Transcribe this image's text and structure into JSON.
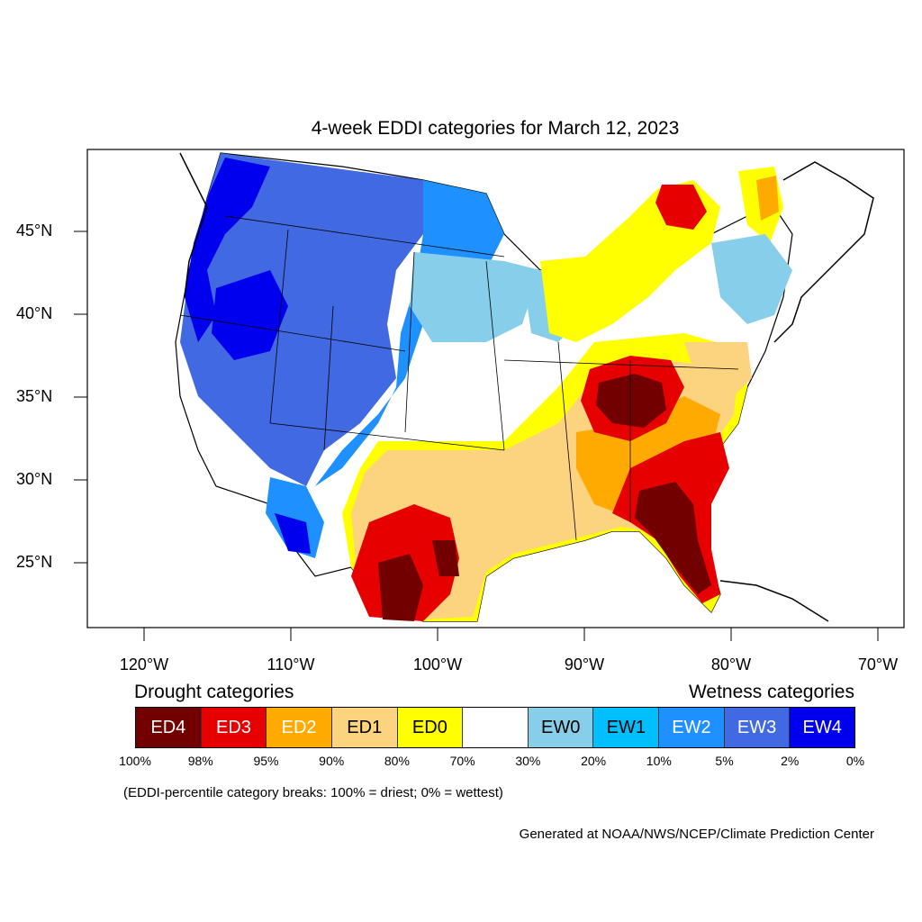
{
  "title": "4-week EDDI categories for March 12, 2023",
  "lat_labels": [
    "45°N",
    "40°N",
    "35°N",
    "30°N",
    "25°N"
  ],
  "lon_labels": [
    "120°W",
    "110°W",
    "100°W",
    "90°W",
    "80°W",
    "70°W"
  ],
  "legend": {
    "drought_heading": "Drought categories",
    "wetness_heading": "Wetness categories",
    "categories": [
      {
        "label": "ED4",
        "color": "#730000",
        "text_color": "#ffffff"
      },
      {
        "label": "ED3",
        "color": "#e60000",
        "text_color": "#ffffff"
      },
      {
        "label": "ED2",
        "color": "#ffaa00",
        "text_color": "#ffffff"
      },
      {
        "label": "ED1",
        "color": "#fcd37f",
        "text_color": "#000000"
      },
      {
        "label": "ED0",
        "color": "#ffff00",
        "text_color": "#000000"
      },
      {
        "label": "",
        "color": "#ffffff",
        "text_color": "#000000"
      },
      {
        "label": "EW0",
        "color": "#87ceeb",
        "text_color": "#000000"
      },
      {
        "label": "EW1",
        "color": "#00bfff",
        "text_color": "#000000"
      },
      {
        "label": "EW2",
        "color": "#1e90ff",
        "text_color": "#ffffff"
      },
      {
        "label": "EW3",
        "color": "#4169e1",
        "text_color": "#ffffff"
      },
      {
        "label": "EW4",
        "color": "#0000ee",
        "text_color": "#ffffff"
      }
    ],
    "percent_breaks": [
      "100%",
      "98%",
      "95%",
      "90%",
      "80%",
      "70%",
      "30%",
      "20%",
      "10%",
      "5%",
      "2%",
      "0%"
    ]
  },
  "note": "(EDDI-percentile category breaks: 100% = driest; 0% = wettest)",
  "credit": "Generated at NOAA/NWS/NCEP/Climate Prediction Center"
}
